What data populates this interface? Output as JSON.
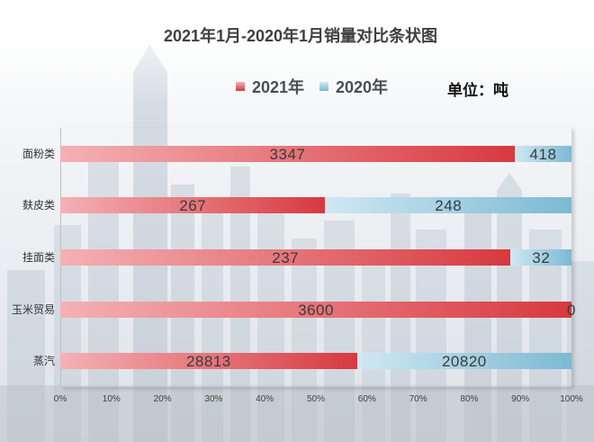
{
  "chart_data": {
    "type": "bar",
    "orientation": "horizontal",
    "stacking": "percent",
    "title": "2021年1月-2020年1月销量对比条状图",
    "unit": "单位：吨",
    "categories": [
      "面粉类",
      "麸皮类",
      "挂面类",
      "玉米贸易",
      "蒸汽"
    ],
    "series": [
      {
        "name": "2021年",
        "values": [
          3347,
          267,
          237,
          3600,
          28813
        ],
        "color": "#d7393f",
        "color_light": "#f4b1b5"
      },
      {
        "name": "2020年",
        "values": [
          418,
          248,
          32,
          0,
          20820
        ],
        "color": "#7cb9d4",
        "color_light": "#cfe8f2"
      }
    ],
    "x_ticks": [
      "0%",
      "10%",
      "20%",
      "30%",
      "40%",
      "50%",
      "60%",
      "70%",
      "80%",
      "90%",
      "100%"
    ],
    "xlim": [
      0,
      100
    ],
    "legend_position": "top",
    "grid": false
  }
}
